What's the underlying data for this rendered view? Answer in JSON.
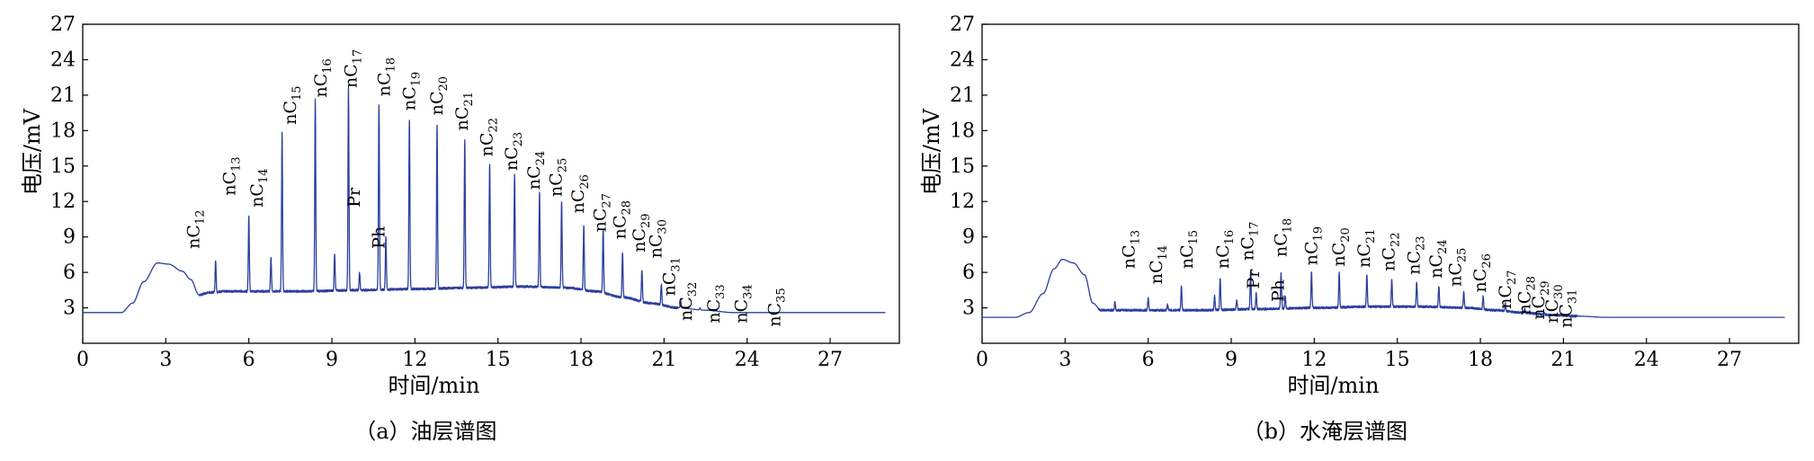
{
  "chart_data": [
    {
      "type": "line",
      "caption": "（a）油层谱图",
      "xlabel": "时间/min",
      "ylabel": "电压/mV",
      "xlim": [
        0,
        29.5
      ],
      "ylim": [
        0,
        27
      ],
      "xticks": [
        0,
        3,
        6,
        9,
        12,
        15,
        18,
        21,
        24,
        27
      ],
      "yticks": [
        3,
        6,
        9,
        12,
        15,
        18,
        21,
        24,
        27
      ],
      "line_color": "#2b3f9e",
      "baseline": [
        [
          0,
          2.6
        ],
        [
          1.4,
          2.6
        ],
        [
          1.8,
          3.4
        ],
        [
          2.2,
          5.2
        ],
        [
          2.7,
          6.8
        ],
        [
          3.1,
          6.7
        ],
        [
          3.6,
          6.1
        ],
        [
          3.9,
          5.4
        ],
        [
          4.2,
          4.1
        ],
        [
          4.6,
          4.3
        ],
        [
          5.2,
          4.4
        ],
        [
          6.5,
          4.4
        ],
        [
          8,
          4.4
        ],
        [
          10,
          4.5
        ],
        [
          12,
          4.6
        ],
        [
          14,
          4.7
        ],
        [
          16,
          4.8
        ],
        [
          17.5,
          4.7
        ],
        [
          18.5,
          4.4
        ],
        [
          19.5,
          3.9
        ],
        [
          20.5,
          3.4
        ],
        [
          21.5,
          3.0
        ],
        [
          22.5,
          2.8
        ],
        [
          23.5,
          2.6
        ],
        [
          29,
          2.6
        ]
      ],
      "peaks": [
        {
          "x": 4.8,
          "y": 7.0,
          "label": "nC",
          "sub": "12"
        },
        {
          "x": 6.0,
          "y": 10.8,
          "label": "nC",
          "sub": "13"
        },
        {
          "x": 6.8,
          "y": 7.2,
          "label": "",
          "sub": ""
        },
        {
          "x": 7.2,
          "y": 17.8,
          "label": "nC",
          "sub": "14"
        },
        {
          "x": 8.4,
          "y": 20.6,
          "label": "nC",
          "sub": "15"
        },
        {
          "x": 9.1,
          "y": 7.6,
          "label": "",
          "sub": ""
        },
        {
          "x": 9.6,
          "y": 21.5,
          "label": "nC",
          "sub": "16"
        },
        {
          "x": 10.0,
          "y": 6.0,
          "label": "",
          "sub": ""
        },
        {
          "x": 10.7,
          "y": 20.2,
          "label": "nC",
          "sub": "17"
        },
        {
          "x": 10.95,
          "y": 9.0,
          "label": "",
          "sub": ""
        },
        {
          "x": 11.8,
          "y": 18.8,
          "label": "nC",
          "sub": "18"
        },
        {
          "x": 12.8,
          "y": 18.5,
          "label": "nC",
          "sub": "19"
        },
        {
          "x": 13.8,
          "y": 17.2,
          "label": "nC",
          "sub": "20"
        },
        {
          "x": 14.7,
          "y": 15.2,
          "label": "nC",
          "sub": "21"
        },
        {
          "x": 15.6,
          "y": 14.3,
          "label": "nC",
          "sub": "22"
        },
        {
          "x": 16.5,
          "y": 12.8,
          "label": "nC",
          "sub": "23"
        },
        {
          "x": 17.3,
          "y": 12.0,
          "label": "nC",
          "sub": "24"
        },
        {
          "x": 18.1,
          "y": 10.0,
          "label": "nC",
          "sub": "25"
        },
        {
          "x": 18.8,
          "y": 9.7,
          "label": "nC",
          "sub": "26"
        },
        {
          "x": 19.5,
          "y": 7.6,
          "label": "nC",
          "sub": "27"
        },
        {
          "x": 20.2,
          "y": 6.2,
          "label": "nC",
          "sub": "28"
        },
        {
          "x": 20.9,
          "y": 5.0,
          "label": "nC",
          "sub": "29"
        },
        {
          "x": 21.6,
          "y": 3.6,
          "label": "nC",
          "sub": "30"
        },
        {
          "x": 22.3,
          "y": 3.0,
          "label": "nC",
          "sub": "31"
        }
      ],
      "labels": [
        {
          "text": "nC",
          "sub": "12",
          "x": 4.2,
          "y": 8.0
        },
        {
          "text": "nC",
          "sub": "13",
          "x": 5.5,
          "y": 12.5
        },
        {
          "text": "nC",
          "sub": "14",
          "x": 6.5,
          "y": 11.5
        },
        {
          "text": "nC",
          "sub": "15",
          "x": 7.7,
          "y": 18.5
        },
        {
          "text": "nC",
          "sub": "16",
          "x": 8.8,
          "y": 20.8
        },
        {
          "text": "nC",
          "sub": "17",
          "x": 9.9,
          "y": 21.6
        },
        {
          "text": "Pr",
          "sub": "",
          "x": 10.0,
          "y": 11.5
        },
        {
          "text": "nC",
          "sub": "18",
          "x": 11.1,
          "y": 20.9
        },
        {
          "text": "Ph",
          "sub": "",
          "x": 10.9,
          "y": 8.0
        },
        {
          "text": "nC",
          "sub": "19",
          "x": 12.0,
          "y": 19.7
        },
        {
          "text": "nC",
          "sub": "20",
          "x": 13.0,
          "y": 19.3
        },
        {
          "text": "nC",
          "sub": "21",
          "x": 13.9,
          "y": 18.0
        },
        {
          "text": "nC",
          "sub": "22",
          "x": 14.8,
          "y": 15.8
        },
        {
          "text": "nC",
          "sub": "23",
          "x": 15.7,
          "y": 14.6
        },
        {
          "text": "nC",
          "sub": "24",
          "x": 16.5,
          "y": 13.0
        },
        {
          "text": "nC",
          "sub": "25",
          "x": 17.3,
          "y": 12.4
        },
        {
          "text": "nC",
          "sub": "26",
          "x": 18.1,
          "y": 11.0
        },
        {
          "text": "nC",
          "sub": "27",
          "x": 18.9,
          "y": 9.4
        },
        {
          "text": "nC",
          "sub": "28",
          "x": 19.6,
          "y": 8.8
        },
        {
          "text": "nC",
          "sub": "29",
          "x": 20.3,
          "y": 7.7
        },
        {
          "text": "nC",
          "sub": "30",
          "x": 20.9,
          "y": 7.2
        },
        {
          "text": "nC",
          "sub": "31",
          "x": 21.4,
          "y": 4.0
        },
        {
          "text": "nC",
          "sub": "32",
          "x": 22.0,
          "y": 1.9
        },
        {
          "text": "nC",
          "sub": "33",
          "x": 23.0,
          "y": 1.7
        },
        {
          "text": "nC",
          "sub": "34",
          "x": 24.0,
          "y": 1.7
        },
        {
          "text": "nC",
          "sub": "35",
          "x": 25.2,
          "y": 1.4
        }
      ]
    },
    {
      "type": "line",
      "caption": "（b）水淹层谱图",
      "xlabel": "时间/min",
      "ylabel": "电压/mV",
      "xlim": [
        0,
        29.5
      ],
      "ylim": [
        0,
        27
      ],
      "xticks": [
        0,
        3,
        6,
        9,
        12,
        15,
        18,
        21,
        24,
        27
      ],
      "yticks": [
        3,
        6,
        9,
        12,
        15,
        18,
        21,
        24,
        27
      ],
      "line_color": "#2b3f9e",
      "baseline": [
        [
          0,
          2.2
        ],
        [
          1.2,
          2.2
        ],
        [
          1.7,
          2.6
        ],
        [
          2.2,
          4.2
        ],
        [
          2.6,
          6.3
        ],
        [
          2.9,
          7.1
        ],
        [
          3.3,
          6.8
        ],
        [
          3.7,
          5.8
        ],
        [
          4.0,
          3.4
        ],
        [
          4.3,
          2.8
        ],
        [
          5.5,
          2.8
        ],
        [
          8,
          2.8
        ],
        [
          10,
          2.9
        ],
        [
          12,
          3.0
        ],
        [
          14,
          3.1
        ],
        [
          16,
          3.1
        ],
        [
          17.5,
          3.0
        ],
        [
          18.5,
          2.8
        ],
        [
          19.5,
          2.6
        ],
        [
          20.5,
          2.4
        ],
        [
          21.5,
          2.3
        ],
        [
          22.5,
          2.2
        ],
        [
          29,
          2.2
        ]
      ],
      "peaks": [
        {
          "x": 4.8,
          "y": 3.5,
          "label": "",
          "sub": ""
        },
        {
          "x": 6.0,
          "y": 3.9,
          "label": "nC",
          "sub": "13"
        },
        {
          "x": 6.7,
          "y": 3.3,
          "label": "",
          "sub": ""
        },
        {
          "x": 7.2,
          "y": 4.8,
          "label": "nC",
          "sub": "14"
        },
        {
          "x": 8.4,
          "y": 4.0,
          "label": "nC",
          "sub": "15"
        },
        {
          "x": 8.6,
          "y": 5.5,
          "label": "",
          "sub": ""
        },
        {
          "x": 9.2,
          "y": 3.6,
          "label": "",
          "sub": ""
        },
        {
          "x": 9.7,
          "y": 6.1,
          "label": "nC",
          "sub": "16"
        },
        {
          "x": 9.9,
          "y": 4.2,
          "label": "",
          "sub": ""
        },
        {
          "x": 10.8,
          "y": 6.0,
          "label": "nC",
          "sub": "17"
        },
        {
          "x": 10.95,
          "y": 4.0,
          "label": "",
          "sub": ""
        },
        {
          "x": 11.9,
          "y": 6.1,
          "label": "nC",
          "sub": "18"
        },
        {
          "x": 12.9,
          "y": 6.0,
          "label": "nC",
          "sub": "19"
        },
        {
          "x": 13.9,
          "y": 5.8,
          "label": "nC",
          "sub": "20"
        },
        {
          "x": 14.8,
          "y": 5.4,
          "label": "nC",
          "sub": "21"
        },
        {
          "x": 15.7,
          "y": 5.2,
          "label": "nC",
          "sub": "22"
        },
        {
          "x": 16.5,
          "y": 4.8,
          "label": "nC",
          "sub": "23"
        },
        {
          "x": 17.4,
          "y": 4.3,
          "label": "nC",
          "sub": "24"
        },
        {
          "x": 18.1,
          "y": 4.0,
          "label": "nC",
          "sub": "25"
        },
        {
          "x": 18.9,
          "y": 3.4,
          "label": "nC",
          "sub": "26"
        },
        {
          "x": 19.6,
          "y": 2.9,
          "label": "nC",
          "sub": "27"
        },
        {
          "x": 20.3,
          "y": 2.6,
          "label": "nC",
          "sub": "28"
        },
        {
          "x": 20.9,
          "y": 2.4,
          "label": "nC",
          "sub": "29"
        },
        {
          "x": 21.5,
          "y": 2.3,
          "label": "nC",
          "sub": "30"
        }
      ],
      "labels": [
        {
          "text": "nC",
          "sub": "13",
          "x": 5.5,
          "y": 6.3
        },
        {
          "text": "nC",
          "sub": "14",
          "x": 6.5,
          "y": 5.0
        },
        {
          "text": "nC",
          "sub": "15",
          "x": 7.6,
          "y": 6.3
        },
        {
          "text": "nC",
          "sub": "16",
          "x": 8.9,
          "y": 6.3
        },
        {
          "text": "nC",
          "sub": "17",
          "x": 9.8,
          "y": 7.0
        },
        {
          "text": "Pr",
          "sub": "",
          "x": 10.0,
          "y": 4.6
        },
        {
          "text": "nC",
          "sub": "18",
          "x": 11.0,
          "y": 7.3
        },
        {
          "text": "Ph",
          "sub": "",
          "x": 10.9,
          "y": 3.5
        },
        {
          "text": "nC",
          "sub": "19",
          "x": 12.1,
          "y": 6.6
        },
        {
          "text": "nC",
          "sub": "20",
          "x": 13.1,
          "y": 6.5
        },
        {
          "text": "nC",
          "sub": "21",
          "x": 14.0,
          "y": 6.4
        },
        {
          "text": "nC",
          "sub": "22",
          "x": 14.9,
          "y": 6.1
        },
        {
          "text": "nC",
          "sub": "23",
          "x": 15.8,
          "y": 5.8
        },
        {
          "text": "nC",
          "sub": "24",
          "x": 16.6,
          "y": 5.5
        },
        {
          "text": "nC",
          "sub": "25",
          "x": 17.3,
          "y": 4.8
        },
        {
          "text": "nC",
          "sub": "26",
          "x": 18.2,
          "y": 4.3
        },
        {
          "text": "nC",
          "sub": "27",
          "x": 19.1,
          "y": 2.9
        },
        {
          "text": "nC",
          "sub": "28",
          "x": 19.8,
          "y": 2.4
        },
        {
          "text": "nC",
          "sub": "29",
          "x": 20.3,
          "y": 2.0
        },
        {
          "text": "nC",
          "sub": "30",
          "x": 20.8,
          "y": 1.7
        },
        {
          "text": "nC",
          "sub": "31",
          "x": 21.3,
          "y": 1.3
        }
      ]
    }
  ]
}
